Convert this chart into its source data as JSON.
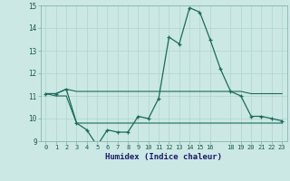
{
  "xlabel": "Humidex (Indice chaleur)",
  "hours": [
    0,
    1,
    2,
    3,
    4,
    5,
    6,
    7,
    8,
    9,
    10,
    11,
    12,
    13,
    14,
    15,
    16,
    17,
    18,
    19,
    20,
    21,
    22,
    23
  ],
  "curve_main": [
    11.1,
    11.1,
    11.3,
    9.8,
    9.5,
    8.8,
    9.5,
    9.4,
    9.4,
    10.1,
    10.0,
    10.9,
    13.6,
    13.3,
    14.9,
    14.7,
    13.5,
    12.2,
    11.2,
    11.0,
    10.1,
    10.1,
    10.0,
    9.9
  ],
  "curve_high": [
    11.1,
    11.1,
    11.3,
    11.2,
    11.2,
    11.2,
    11.2,
    11.2,
    11.2,
    11.2,
    11.2,
    11.2,
    11.2,
    11.2,
    11.2,
    11.2,
    11.2,
    11.2,
    11.2,
    11.2,
    11.1,
    11.1,
    11.1,
    11.1
  ],
  "curve_low": [
    11.1,
    11.0,
    11.0,
    9.8,
    9.8,
    9.8,
    9.8,
    9.8,
    9.8,
    9.8,
    9.8,
    9.8,
    9.8,
    9.8,
    9.8,
    9.8,
    9.8,
    9.8,
    9.8,
    9.8,
    9.8,
    9.8,
    9.8,
    9.8
  ],
  "ylim": [
    9.0,
    15.0
  ],
  "yticks": [
    9,
    10,
    11,
    12,
    13,
    14,
    15
  ],
  "xtick_positions": [
    0,
    1,
    2,
    3,
    4,
    5,
    6,
    7,
    8,
    9,
    10,
    11,
    12,
    13,
    14,
    15,
    16,
    18,
    19,
    20,
    21,
    22,
    23
  ],
  "xtick_labels": [
    "0",
    "1",
    "2",
    "3",
    "4",
    "5",
    "6",
    "7",
    "8",
    "9",
    "10",
    "11",
    "12",
    "13",
    "14",
    "15",
    "16",
    "18",
    "19",
    "20",
    "21",
    "22",
    "23"
  ],
  "line_color": "#1a6b5a",
  "bg_color": "#cce8e4",
  "grid_color": "#afd4d0",
  "tick_label_color": "#1a5a4a",
  "xlabel_color": "#1a1a6a"
}
